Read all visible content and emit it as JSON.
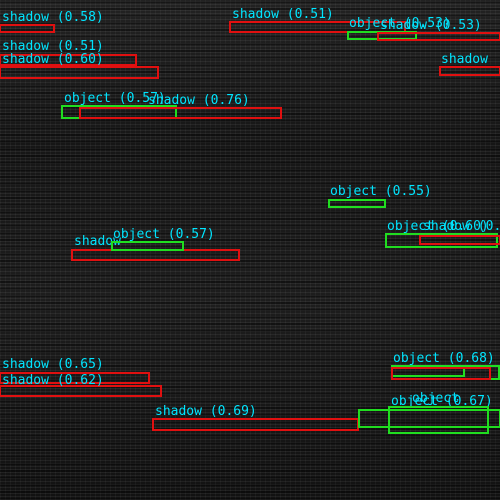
{
  "scene": {
    "description_free": true,
    "colors": {
      "shadow": "#e01010",
      "object": "#20dd20",
      "label": "#00e5ff"
    }
  },
  "detections": [
    {
      "cls": "shadow",
      "label": "shadow (0.58)"
    },
    {
      "cls": "shadow",
      "label": "shadow (0.51)"
    },
    {
      "cls": "object",
      "label": "object (0.53)"
    },
    {
      "cls": "shadow",
      "label": "shadow (0.53)"
    },
    {
      "cls": "shadow",
      "label": "shadow (0.51)"
    },
    {
      "cls": "shadow",
      "label": "shadow (0.60)"
    },
    {
      "cls": "shadow",
      "label": "shadow"
    },
    {
      "cls": "object",
      "label": "object (0.57)"
    },
    {
      "cls": "shadow",
      "label": "shadow (0.76)"
    },
    {
      "cls": "object",
      "label": "object (0.55)"
    },
    {
      "cls": "object",
      "label": "object (0.60)"
    },
    {
      "cls": "shadow",
      "label": "shadow (0.65)"
    },
    {
      "cls": "shadow",
      "label": "shadow"
    },
    {
      "cls": "object",
      "label": "object (0.57)"
    },
    {
      "cls": "shadow",
      "label": "shadow (0.65)"
    },
    {
      "cls": "shadow",
      "label": "shadow (0.62)"
    },
    {
      "cls": "object",
      "label": "object (0.68)"
    },
    {
      "cls": "shadow",
      "label": "shadow (0.69)"
    },
    {
      "cls": "object",
      "label": "object (0.67)"
    },
    {
      "cls": "object",
      "label": "object"
    }
  ]
}
